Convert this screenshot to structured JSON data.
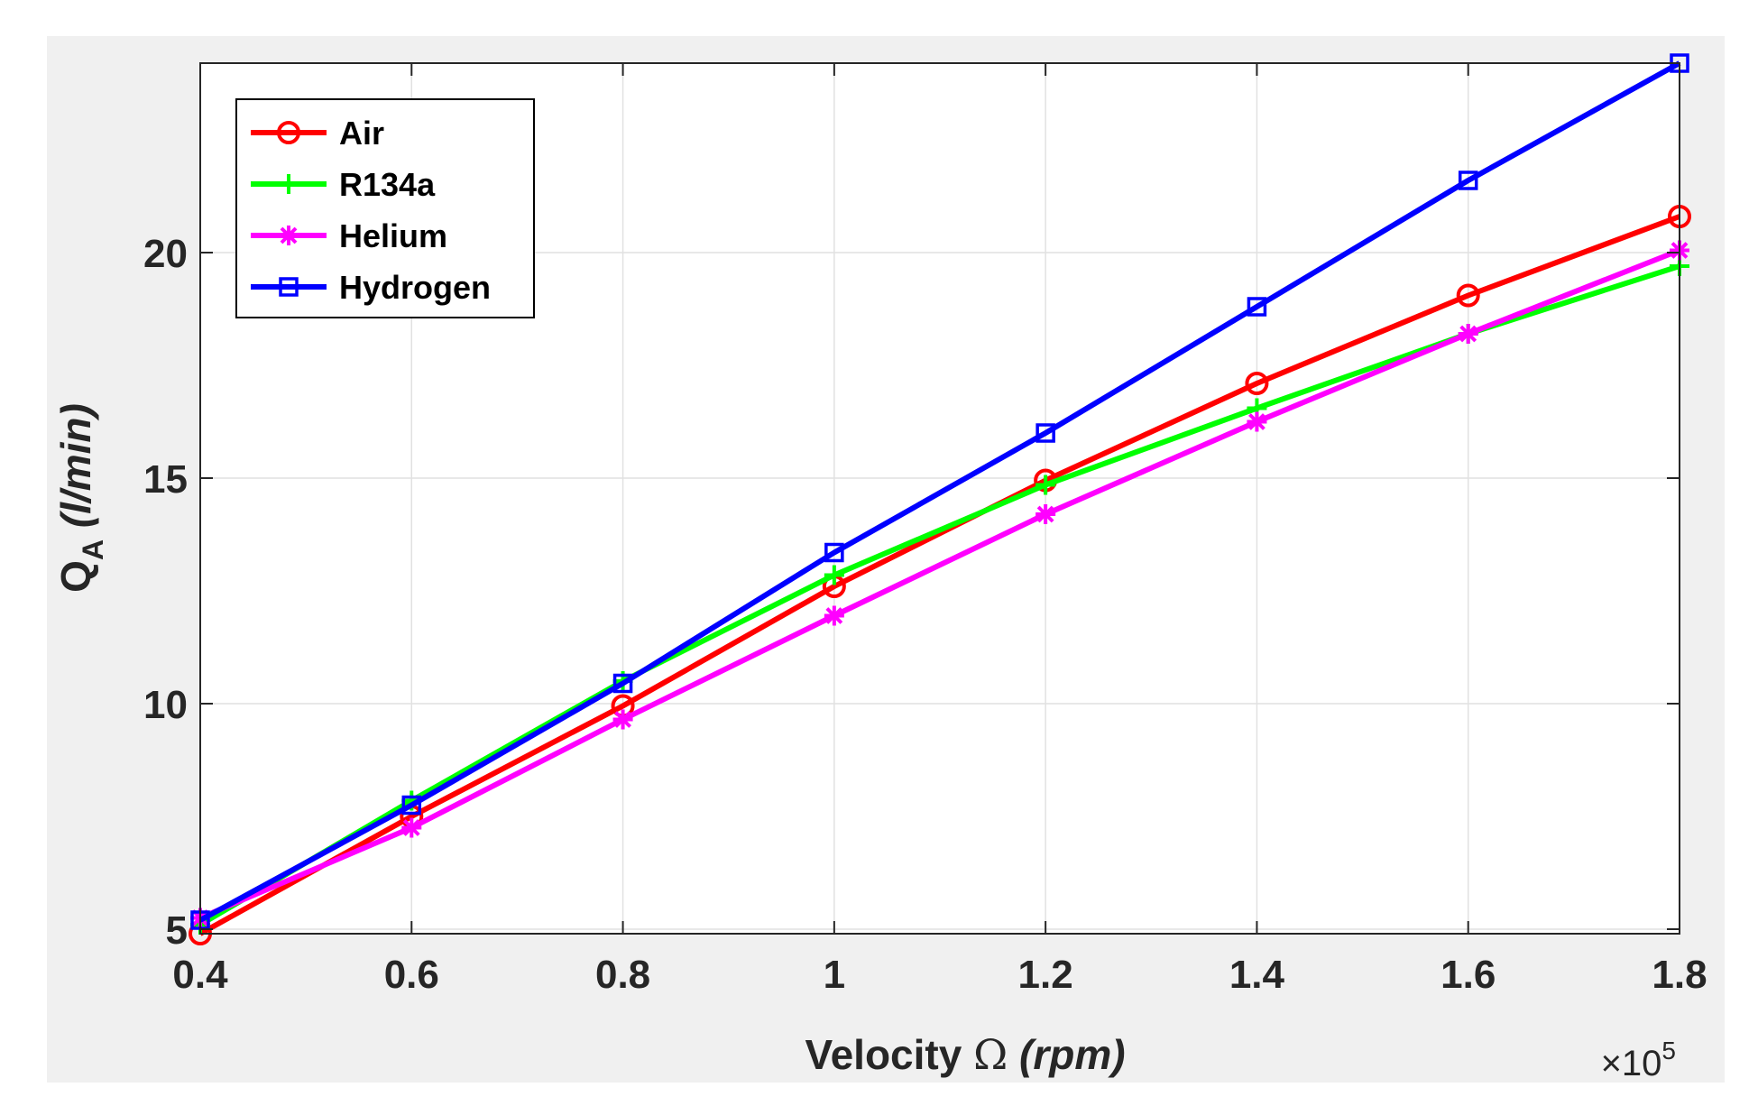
{
  "chart_data": {
    "type": "line",
    "title": "",
    "xlabel": "Velocity",
    "xlabel_symbol": "Ω",
    "xlabel_unit": "(rpm)",
    "ylabel_main": "Q",
    "ylabel_sub": "A",
    "ylabel_unit": "(l/min)",
    "x_multiplier_prefix": "×10",
    "x_multiplier_exp": "5",
    "xlim": [
      0.4,
      1.8
    ],
    "ylim": [
      4.9,
      24.2
    ],
    "grid": true,
    "legend_position": "top-left",
    "x": [
      0.4,
      0.6,
      0.8,
      1.0,
      1.2,
      1.4,
      1.6,
      1.8
    ],
    "xticks": [
      0.4,
      0.6,
      0.8,
      1.0,
      1.2,
      1.4,
      1.6,
      1.8
    ],
    "xtick_labels": [
      "0.4",
      "0.6",
      "0.8",
      "1",
      "1.2",
      "1.4",
      "1.6",
      "1.8"
    ],
    "yticks": [
      5,
      10,
      15,
      20
    ],
    "ytick_labels": [
      "5",
      "10",
      "15",
      "20"
    ],
    "series": [
      {
        "name": "Air",
        "color": "#ff0000",
        "marker": "circle",
        "values": [
          4.9,
          7.5,
          9.95,
          12.6,
          14.95,
          17.1,
          19.05,
          20.8
        ]
      },
      {
        "name": "R134a",
        "color": "#00ff00",
        "marker": "plus",
        "values": [
          5.1,
          7.85,
          10.5,
          12.85,
          14.85,
          16.55,
          18.2,
          19.7
        ]
      },
      {
        "name": "Helium",
        "color": "#ff00ff",
        "marker": "asterisk",
        "values": [
          5.25,
          7.25,
          9.65,
          11.95,
          14.2,
          16.25,
          18.2,
          20.05
        ]
      },
      {
        "name": "Hydrogen",
        "color": "#0000ff",
        "marker": "square",
        "values": [
          5.2,
          7.75,
          10.45,
          13.35,
          16.0,
          18.8,
          21.6,
          24.2
        ]
      }
    ]
  }
}
